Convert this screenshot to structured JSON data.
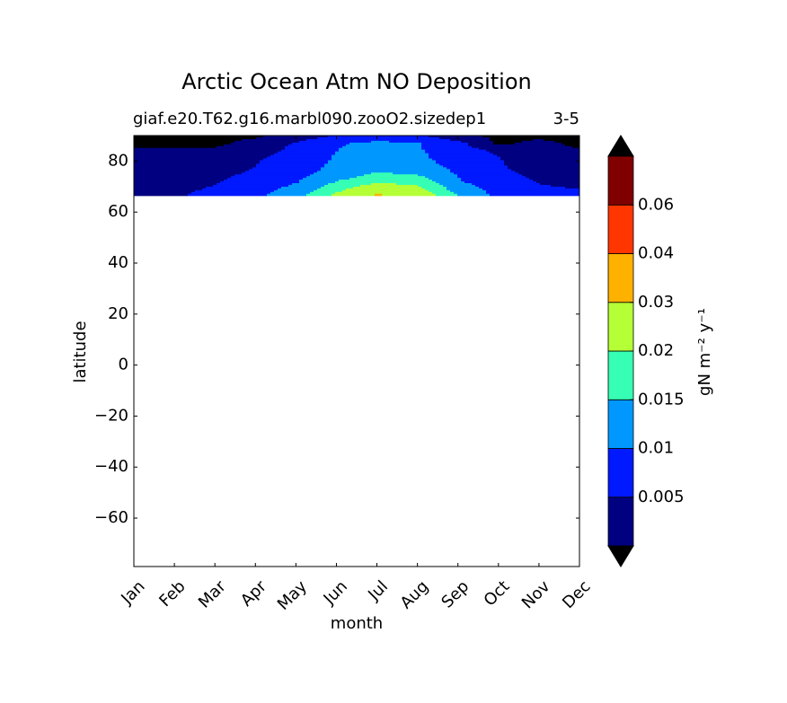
{
  "chart_data": {
    "type": "contourf",
    "title": "Arctic Ocean Atm NO Deposition",
    "subtitle_left": "giaf.e20.T62.g16.marbl090.zooO2.sizedep1",
    "subtitle_right": "3-5",
    "xlabel": "month",
    "ylabel": "latitude",
    "x_tick_labels": [
      "Jan",
      "Feb",
      "Mar",
      "Apr",
      "May",
      "Jun",
      "Jul",
      "Aug",
      "Sep",
      "Oct",
      "Nov",
      "Dec"
    ],
    "x_ticks": [
      1,
      2,
      3,
      4,
      5,
      6,
      7,
      8,
      9,
      10,
      11,
      12
    ],
    "xlim": [
      1,
      12
    ],
    "y_ticks": [
      80,
      60,
      40,
      20,
      0,
      -20,
      -40,
      -60
    ],
    "y_tick_labels": [
      "80",
      "60",
      "40",
      "20",
      "0",
      "−20",
      "−40",
      "−60"
    ],
    "ylim": [
      -79,
      90
    ],
    "data_lat_range": [
      66.5,
      90
    ],
    "colorbar": {
      "label": "gN m⁻² y⁻¹",
      "levels": [
        0,
        0.005,
        0.01,
        0.015,
        0.02,
        0.03,
        0.04,
        0.06,
        0.07
      ],
      "tick_values": [
        0.005,
        0.01,
        0.015,
        0.02,
        0.03,
        0.04,
        0.06
      ],
      "tick_labels": [
        "0.005",
        "0.01",
        "0.015",
        "0.02",
        "0.03",
        "0.04",
        "0.06"
      ],
      "colors": [
        "#000080",
        "#0019ff",
        "#0098ff",
        "#36ffb5",
        "#b5ff36",
        "#ffb100",
        "#ff3600",
        "#800000"
      ],
      "under_color": "#000000",
      "over_color": "#000000"
    },
    "field": {
      "months": [
        1,
        2,
        3,
        4,
        5,
        6,
        7,
        8,
        9,
        10,
        11,
        12
      ],
      "latitudes": [
        66.5,
        69,
        72,
        75,
        78,
        81,
        84,
        87,
        90
      ],
      "values": [
        [
          0.004,
          0.0035,
          0.003,
          0.002,
          0.0015,
          0.001,
          0.0005,
          -0.001,
          -0.001
        ],
        [
          0.0045,
          0.004,
          0.0035,
          0.0025,
          0.002,
          0.0015,
          0.0005,
          -0.001,
          -0.001
        ],
        [
          0.0065,
          0.0055,
          0.0045,
          0.0035,
          0.0025,
          0.0018,
          0.0008,
          -0.001,
          -0.001
        ],
        [
          0.009,
          0.008,
          0.007,
          0.006,
          0.005,
          0.0045,
          0.0035,
          0.0015,
          -0.001
        ],
        [
          0.013,
          0.0115,
          0.0095,
          0.0085,
          0.0075,
          0.0068,
          0.006,
          0.0055,
          0.002
        ],
        [
          0.021,
          0.0185,
          0.015,
          0.012,
          0.011,
          0.0105,
          0.01,
          0.0095,
          0.005
        ],
        [
          0.032,
          0.024,
          0.019,
          0.0155,
          0.013,
          0.012,
          0.0115,
          0.011,
          0.007
        ],
        [
          0.025,
          0.022,
          0.018,
          0.0145,
          0.012,
          0.011,
          0.0105,
          0.0102,
          0.006
        ],
        [
          0.015,
          0.0125,
          0.0105,
          0.0095,
          0.0085,
          0.008,
          0.0075,
          0.0065,
          0.001
        ],
        [
          0.009,
          0.008,
          0.007,
          0.006,
          0.0055,
          0.0052,
          0.004,
          -0.001,
          -0.001
        ],
        [
          0.006,
          0.0055,
          0.0048,
          0.004,
          0.003,
          0.0025,
          0.002,
          0.001,
          -0.001
        ],
        [
          0.0058,
          0.005,
          0.004,
          0.0035,
          0.0028,
          0.002,
          0.0005,
          -0.001,
          -0.001
        ]
      ]
    }
  }
}
